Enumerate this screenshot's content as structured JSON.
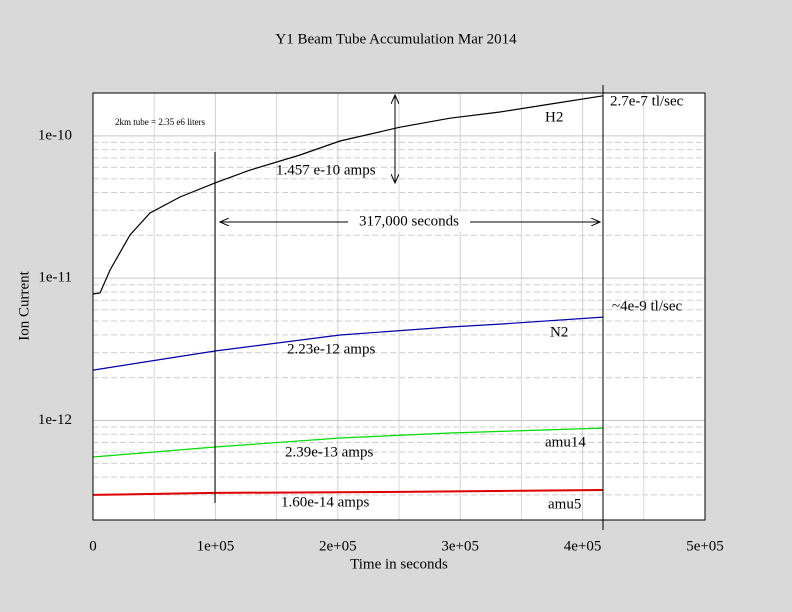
{
  "chart_data": {
    "type": "line",
    "title": "Y1 Beam Tube Accumulation Mar 2014",
    "x_label": "Time in seconds",
    "y_label": "Ion Current",
    "log_y": true,
    "grid": true,
    "xlim": [
      0,
      500000
    ],
    "ylim": [
      2e-13,
      2e-10
    ],
    "xticks": [
      {
        "value": 0,
        "label": "0"
      },
      {
        "value": 100000,
        "label": "1e+05"
      },
      {
        "value": 200000,
        "label": "2e+05"
      },
      {
        "value": 300000,
        "label": "3e+05"
      },
      {
        "value": 400000,
        "label": "4e+05"
      },
      {
        "value": 500000,
        "label": "5e+05"
      }
    ],
    "x_minor_ticks": [
      50000,
      150000,
      250000,
      350000,
      450000
    ],
    "yticks": [
      {
        "value": 1e-12,
        "label": "1e-12"
      },
      {
        "value": 1e-11,
        "label": "1e-11"
      },
      {
        "value": 1e-10,
        "label": "1e-10"
      }
    ],
    "y_minor_ticks": [
      3e-13,
      4e-13,
      5e-13,
      6e-13,
      7e-13,
      8e-13,
      9e-13,
      2e-12,
      3e-12,
      4e-12,
      5e-12,
      6e-12,
      7e-12,
      8e-12,
      9e-12,
      2e-11,
      3e-11,
      4e-11,
      5e-11,
      6e-11,
      7e-11,
      8e-11,
      9e-11
    ],
    "series": [
      {
        "name": "H2",
        "color": "#000000",
        "x": [
          0,
          5700,
          13900,
          30200,
          46600,
          71100,
          99700,
          128300,
          169100,
          201800,
          250800,
          291700,
          332500,
          373400,
          416700
        ],
        "values": [
          7.74e-12,
          7.87e-12,
          1.14e-11,
          2.01e-11,
          2.87e-11,
          3.72e-11,
          4.67e-11,
          5.75e-11,
          7.33e-11,
          9.2e-11,
          1.15e-10,
          1.33e-10,
          1.47e-10,
          1.67e-10,
          1.91e-10
        ]
      },
      {
        "name": "N2",
        "color": "#0000aa",
        "x": [
          0,
          99700,
          201800,
          291700,
          332500,
          416700
        ],
        "values": [
          2.26e-12,
          3.08e-12,
          3.99e-12,
          4.54e-12,
          4.76e-12,
          5.33e-12
        ]
      },
      {
        "name": "amu14",
        "color": "#00dd00",
        "x": [
          0,
          99700,
          201800,
          291700,
          416700
        ],
        "values": [
          5.54e-13,
          6.52e-13,
          7.53e-13,
          8.17e-13,
          8.85e-13
        ]
      },
      {
        "name": "amu5",
        "color": "#dd0000",
        "x": [
          0,
          99700,
          250800,
          416700
        ],
        "values": [
          3e-13,
          3.1e-13,
          3.15e-13,
          3.25e-13
        ]
      }
    ],
    "annotations": [
      {
        "text": "2km tube = 2.35 e6 liters"
      },
      {
        "text": "1.457 e-10 amps"
      },
      {
        "text": "317,000 seconds"
      },
      {
        "text": "2.7e-7 tl/sec"
      },
      {
        "text": "~4e-9 tl/sec"
      },
      {
        "text": "2.23e-12 amps"
      },
      {
        "text": "2.39e-13 amps"
      },
      {
        "text": "1.60e-14 amps"
      }
    ]
  }
}
